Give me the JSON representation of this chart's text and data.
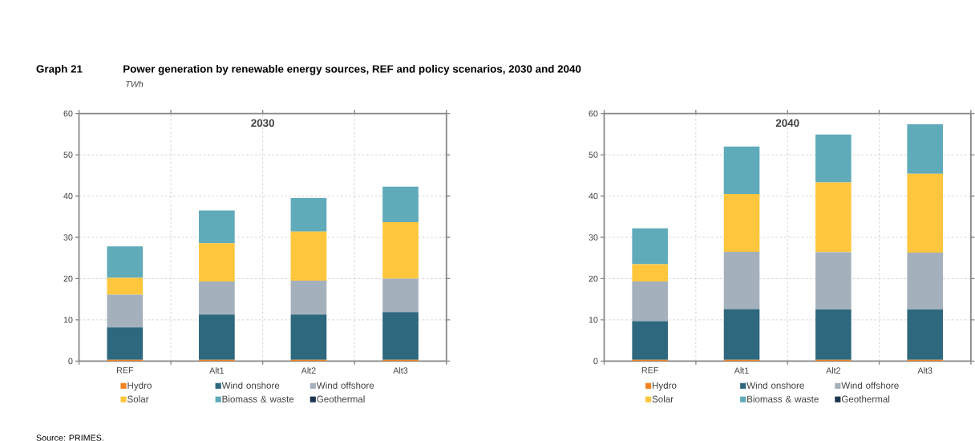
{
  "chart_data": [
    {
      "type": "bar",
      "stacked": true,
      "title": "2030",
      "ylabel": "TWh",
      "annotations": [
        "Graph 21",
        "Power generation by renewable energy sources, REF and policy scenarios, 2030 and 2040",
        "Source: PRIMES."
      ],
      "categories": [
        "REF",
        "Alt1",
        "Alt2",
        "Alt3"
      ],
      "series": [
        {
          "name": "Hydro",
          "color": "#f28220",
          "values": [
            0.3,
            0.3,
            0.3,
            0.3
          ]
        },
        {
          "name": "Wind onshore",
          "color": "#2e687e",
          "values": [
            7.9,
            11.0,
            11.0,
            11.6
          ]
        },
        {
          "name": "Wind offshore",
          "color": "#a5b0bd",
          "values": [
            7.9,
            8.0,
            8.2,
            8.1
          ]
        },
        {
          "name": "Solar",
          "color": "#fec63d",
          "values": [
            4.1,
            9.3,
            11.9,
            13.7
          ]
        },
        {
          "name": "Biomass & waste",
          "color": "#5fabba",
          "values": [
            7.6,
            7.9,
            8.1,
            8.6
          ]
        },
        {
          "name": "Geothermal",
          "color": "#1a3550",
          "values": [
            0,
            0,
            0,
            0
          ]
        }
      ],
      "ylim": [
        0,
        60
      ],
      "yticks": [
        0,
        10,
        20,
        30,
        40,
        50,
        60
      ],
      "grid": true,
      "legend": "bottom"
    },
    {
      "type": "bar",
      "stacked": true,
      "title": "2040",
      "categories": [
        "REF",
        "Alt1",
        "Alt2",
        "Alt3"
      ],
      "series": [
        {
          "name": "Hydro",
          "color": "#f28220",
          "values": [
            0.3,
            0.3,
            0.3,
            0.3
          ]
        },
        {
          "name": "Wind onshore",
          "color": "#2e687e",
          "values": [
            9.4,
            12.3,
            12.2,
            12.2
          ]
        },
        {
          "name": "Wind offshore",
          "color": "#a5b0bd",
          "values": [
            9.6,
            13.9,
            13.9,
            13.8
          ]
        },
        {
          "name": "Solar",
          "color": "#fec63d",
          "values": [
            4.2,
            14.0,
            16.9,
            19.1
          ]
        },
        {
          "name": "Biomass & waste",
          "color": "#5fabba",
          "values": [
            8.7,
            11.5,
            11.6,
            12.0
          ]
        },
        {
          "name": "Geothermal",
          "color": "#1a3550",
          "values": [
            0,
            0,
            0,
            0
          ]
        }
      ],
      "ylim": [
        0,
        60
      ],
      "yticks": [
        0,
        10,
        20,
        30,
        40,
        50,
        60
      ],
      "grid": true,
      "legend": "bottom"
    }
  ]
}
